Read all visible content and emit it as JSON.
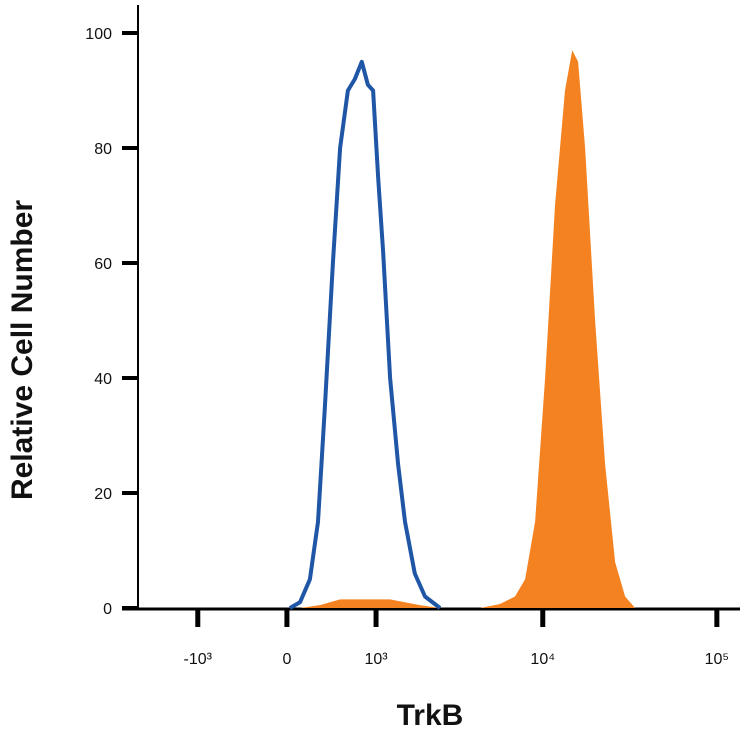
{
  "chart_data": {
    "type": "histogram-overlay",
    "x_label": "TrkB",
    "y_label": "Relative Cell Number",
    "xscale": "biexponential",
    "xlim": [
      -2970,
      135800
    ],
    "ylim": [
      0,
      100
    ],
    "xticks": [
      {
        "value": -1000,
        "label": "-10³"
      },
      0,
      {
        "value": 1000,
        "label": "10³"
      },
      {
        "value": 10000,
        "label": "10⁴"
      },
      {
        "value": 100000,
        "label": "10⁵"
      }
    ],
    "yticks": [
      0,
      20,
      40,
      60,
      80,
      100
    ],
    "series": [
      {
        "color": "#f58220",
        "style": "filled",
        "x": [
          118,
          306,
          518,
          763,
          1244,
          1909,
          2529,
          4345,
          5671,
          6922,
          7908,
          9030,
          10309,
          11764,
          13423,
          14756,
          15960,
          17503,
          19992,
          22807,
          26044,
          29716,
          33932
        ],
        "values": [
          0,
          0.5,
          1.5,
          1.5,
          1.5,
          0.5,
          0,
          0,
          0.7,
          2,
          5,
          15,
          40,
          70,
          90,
          97,
          95,
          80,
          50,
          25,
          8,
          2,
          0
        ]
      },
      {
        "color": "#1f56a6",
        "style": "outline",
        "x": [
          27,
          118,
          210,
          287,
          356,
          439,
          518,
          610,
          697,
          789,
          876,
          953,
          1033,
          1118,
          1244,
          1401,
          1549,
          1780,
          2054,
          2529
        ],
        "values": [
          0,
          1,
          5,
          15,
          35,
          60,
          80,
          90,
          92,
          95,
          91,
          90,
          75,
          62,
          40,
          25,
          15,
          6,
          2,
          0
        ]
      }
    ]
  }
}
